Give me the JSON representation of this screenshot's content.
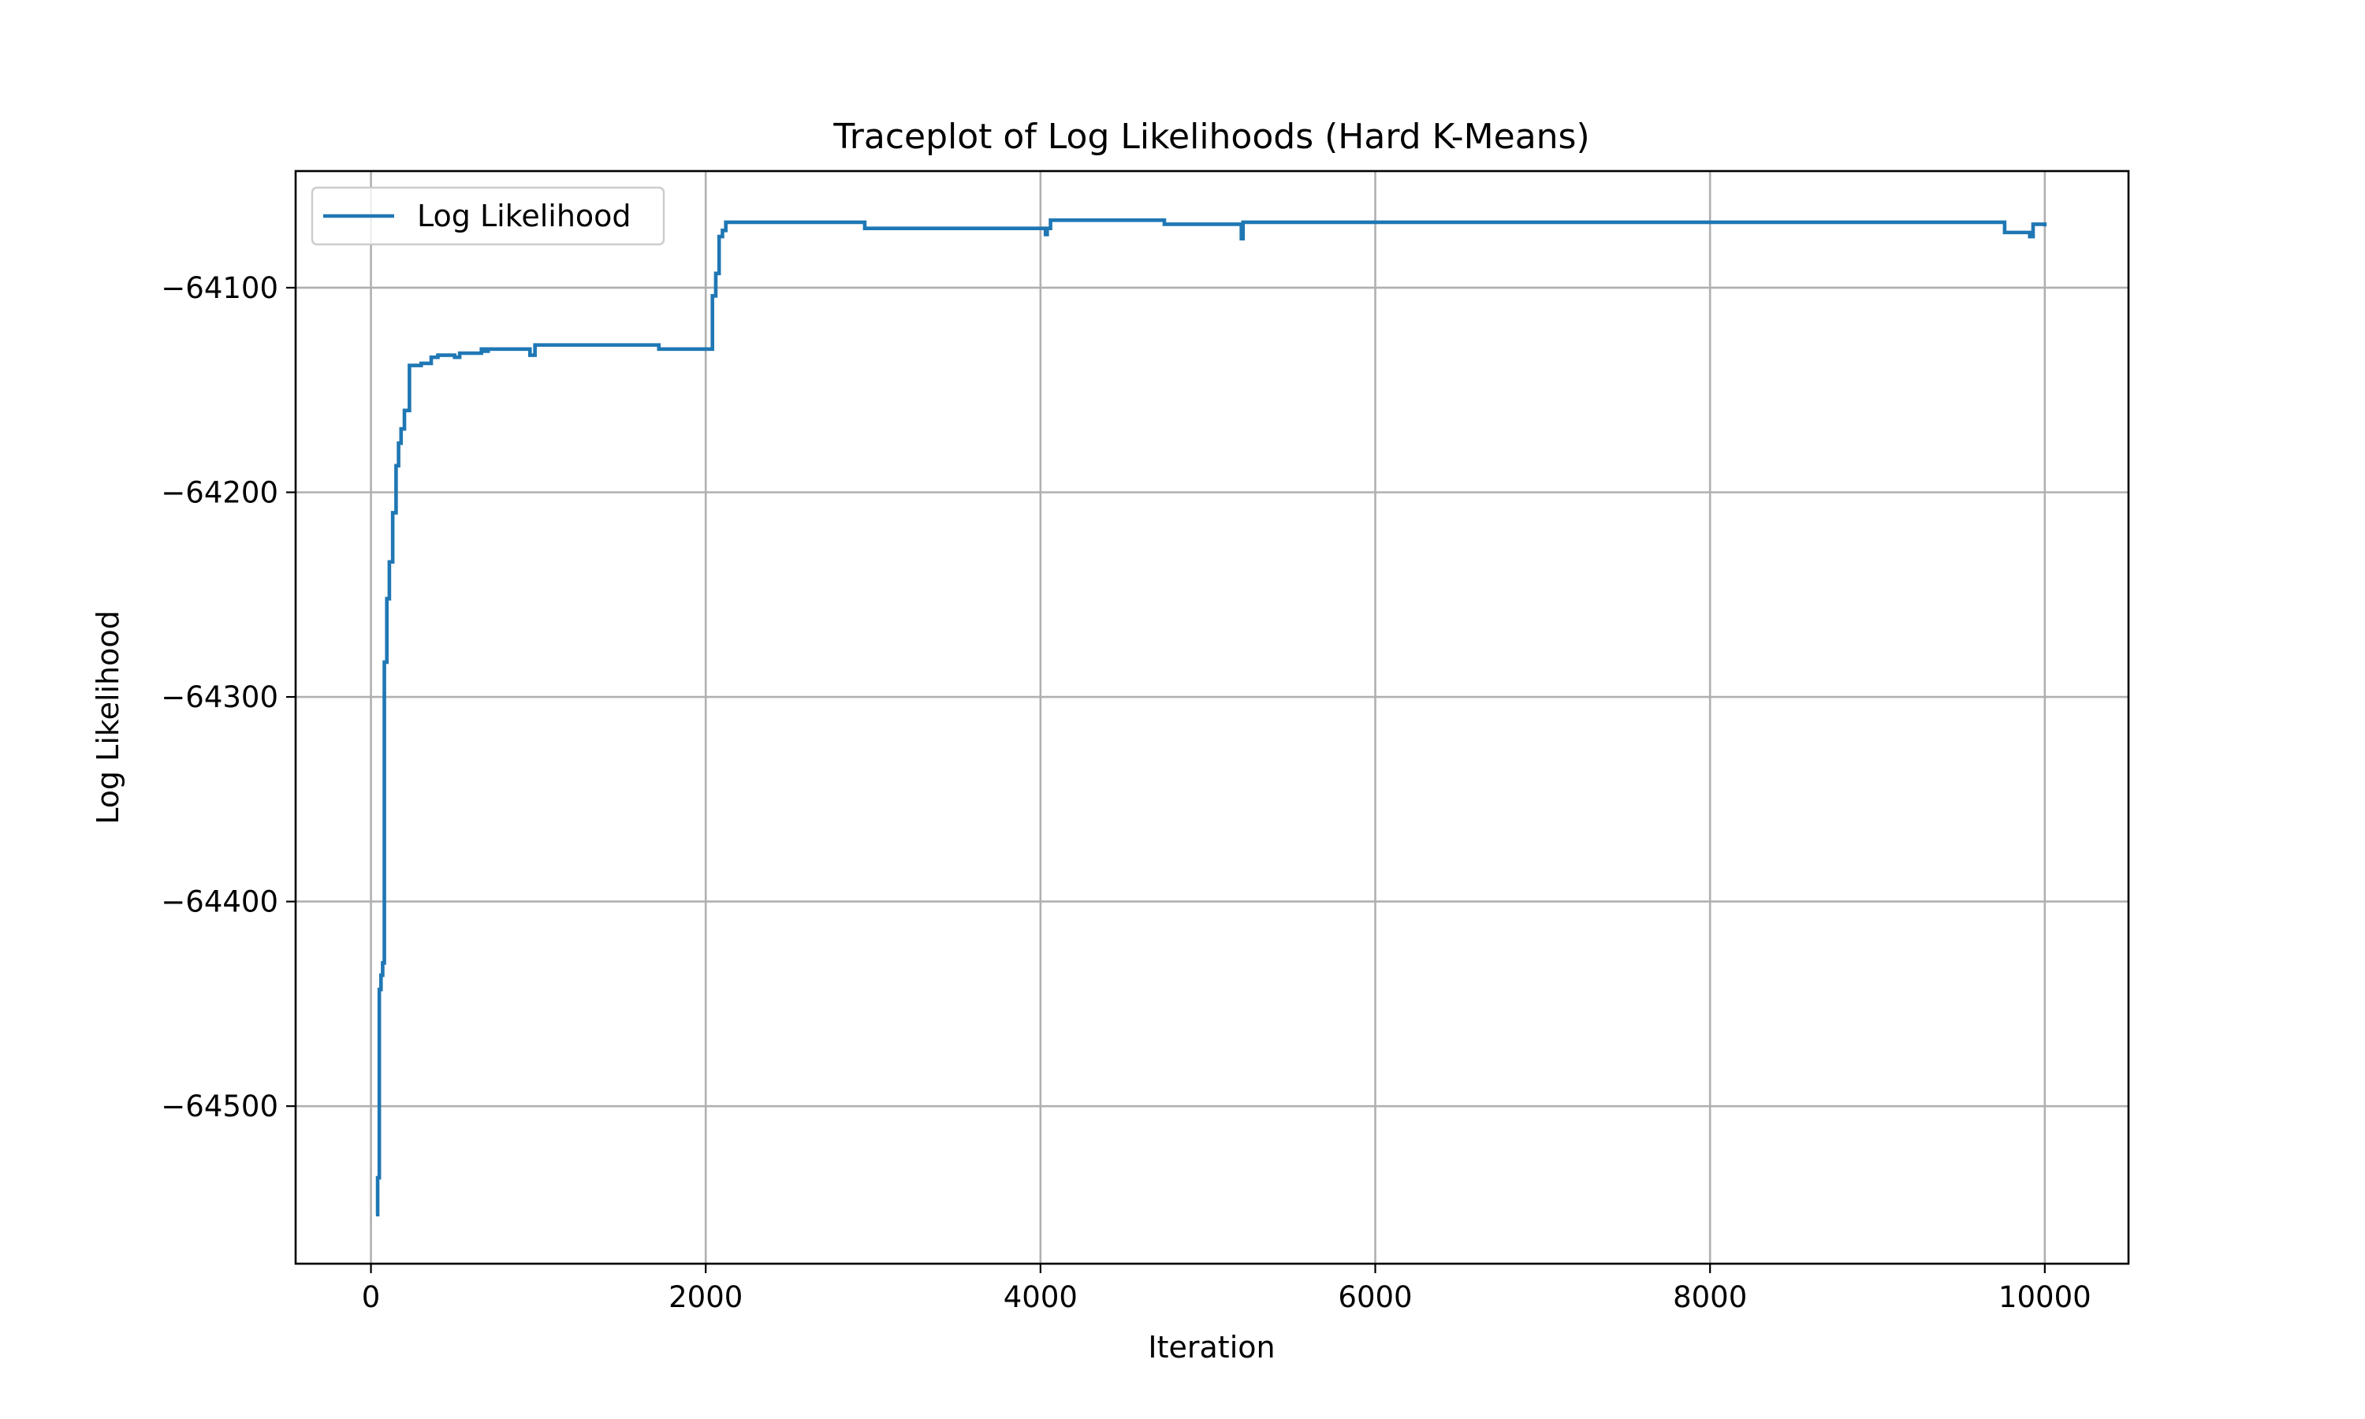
{
  "chart_data": {
    "type": "line",
    "title": "Traceplot of Log Likelihoods (Hard K-Means)",
    "xlabel": "Iteration",
    "ylabel": "Log Likelihood",
    "xlim": [
      -450,
      10500
    ],
    "ylim": [
      -64577,
      -64043
    ],
    "x_ticks": [
      0,
      2000,
      4000,
      6000,
      8000,
      10000
    ],
    "x_tick_labels": [
      "0",
      "2000",
      "4000",
      "6000",
      "8000",
      "10000"
    ],
    "y_ticks": [
      -64500,
      -64400,
      -64300,
      -64200,
      -64100
    ],
    "y_tick_labels": [
      "−64500",
      "−64400",
      "−64300",
      "−64200",
      "−64100"
    ],
    "grid": true,
    "legend_position": "upper-left",
    "colors": {
      "series": "#1f77b4",
      "grid": "#b0b0b0"
    },
    "series": [
      {
        "name": "Log Likelihood",
        "step": true,
        "x": [
          30,
          40,
          50,
          60,
          70,
          80,
          95,
          110,
          130,
          150,
          165,
          180,
          200,
          230,
          260,
          300,
          360,
          400,
          450,
          500,
          530,
          550,
          600,
          660,
          680,
          700,
          750,
          800,
          850,
          950,
          980,
          1000,
          1200,
          1500,
          1700,
          1720,
          1900,
          2030,
          2040,
          2060,
          2080,
          2100,
          2120,
          2500,
          2940,
          2950,
          3200,
          4000,
          4030,
          4040,
          4060,
          4500,
          4730,
          4740,
          5000,
          5190,
          5200,
          5210,
          5500,
          7000,
          8000,
          9000,
          9750,
          9760,
          9900,
          9910,
          9930,
          9940,
          10000
        ],
        "y": [
          -64553,
          -64535,
          -64443,
          -64436,
          -64430,
          -64283,
          -64252,
          -64234,
          -64210,
          -64187,
          -64176,
          -64169,
          -64160,
          -64138,
          -64138,
          -64137,
          -64134,
          -64133,
          -64133,
          -64134,
          -64132,
          -64132,
          -64132,
          -64130,
          -64131,
          -64130,
          -64130,
          -64130,
          -64130,
          -64133,
          -64128,
          -64128,
          -64128,
          -64128,
          -64128,
          -64130,
          -64130,
          -64130,
          -64104,
          -64093,
          -64075,
          -64072,
          -64068,
          -64068,
          -64068,
          -64071,
          -64071,
          -64071,
          -64074,
          -64071,
          -64067,
          -64067,
          -64067,
          -64069,
          -64069,
          -64069,
          -64076,
          -64068,
          -64068,
          -64068,
          -64068,
          -64068,
          -64068,
          -64073,
          -64073,
          -64075,
          -64069,
          -64069,
          -64070
        ]
      }
    ]
  }
}
